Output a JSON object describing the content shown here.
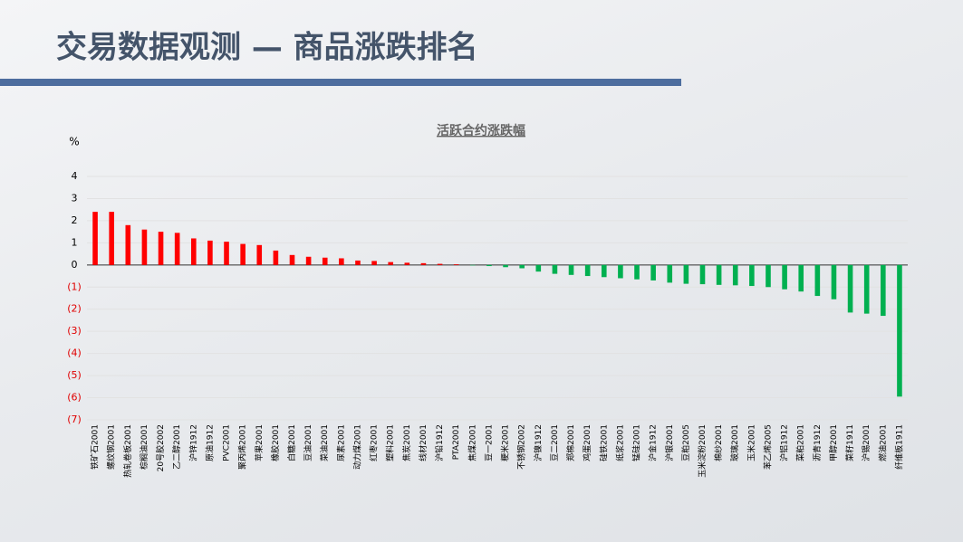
{
  "header": {
    "title": "交易数据观测 — 商品涨跌排名"
  },
  "chart_data": {
    "type": "bar",
    "title": "活跃合约涨跌幅",
    "y_label": "%",
    "categories": [
      "铁矿石2001",
      "螺纹钢2001",
      "热轧卷板2001",
      "棕榈油2001",
      "20号胶2002",
      "乙二醇2001",
      "沪锌1912",
      "原油1912",
      "PVC2001",
      "聚丙烯2001",
      "苹果2001",
      "橡胶2001",
      "白糖2001",
      "豆油2001",
      "菜油2001",
      "尿素2001",
      "动力煤2001",
      "红枣2001",
      "塑料2001",
      "焦炭2001",
      "线材2001",
      "沪铅1912",
      "PTA2001",
      "焦煤2001",
      "豆一2001",
      "粳米2001",
      "不锈钢2002",
      "沪镍1912",
      "豆二2001",
      "郑棉2001",
      "鸡蛋2001",
      "硅铁2001",
      "纸浆2001",
      "锰硅2001",
      "沪金1912",
      "沪银2001",
      "豆粕2005",
      "玉米淀粉2001",
      "棉纱2001",
      "玻璃2001",
      "玉米2001",
      "苯乙烯2005",
      "沪铝1912",
      "菜粕2001",
      "沥青1912",
      "甲醇2001",
      "菜籽1911",
      "沪锡2001",
      "燃油2001",
      "纤维板1911"
    ],
    "values": [
      2.4,
      2.4,
      1.8,
      1.6,
      1.5,
      1.45,
      1.2,
      1.1,
      1.05,
      0.95,
      0.9,
      0.65,
      0.45,
      0.37,
      0.33,
      0.3,
      0.2,
      0.18,
      0.13,
      0.1,
      0.08,
      0.05,
      0.03,
      -0.02,
      -0.05,
      -0.1,
      -0.15,
      -0.3,
      -0.4,
      -0.45,
      -0.5,
      -0.55,
      -0.6,
      -0.65,
      -0.7,
      -0.8,
      -0.85,
      -0.87,
      -0.9,
      -0.92,
      -0.95,
      -1.0,
      -1.1,
      -1.2,
      -1.4,
      -1.55,
      -2.15,
      -2.2,
      -2.3,
      -5.95
    ],
    "positive_color": "#ff0000",
    "negative_color": "#00b050",
    "ylim": [
      -7,
      4
    ],
    "yticks": [
      4,
      3,
      2,
      1,
      0,
      {
        "value": -1,
        "label": "(1)"
      },
      {
        "value": -2,
        "label": "(2)"
      },
      {
        "value": -3,
        "label": "(3)"
      },
      {
        "value": -4,
        "label": "(4)"
      },
      {
        "value": -5,
        "label": "(5)"
      },
      {
        "value": -6,
        "label": "(6)"
      },
      {
        "value": -7,
        "label": "(7)"
      }
    ],
    "grid": true
  }
}
